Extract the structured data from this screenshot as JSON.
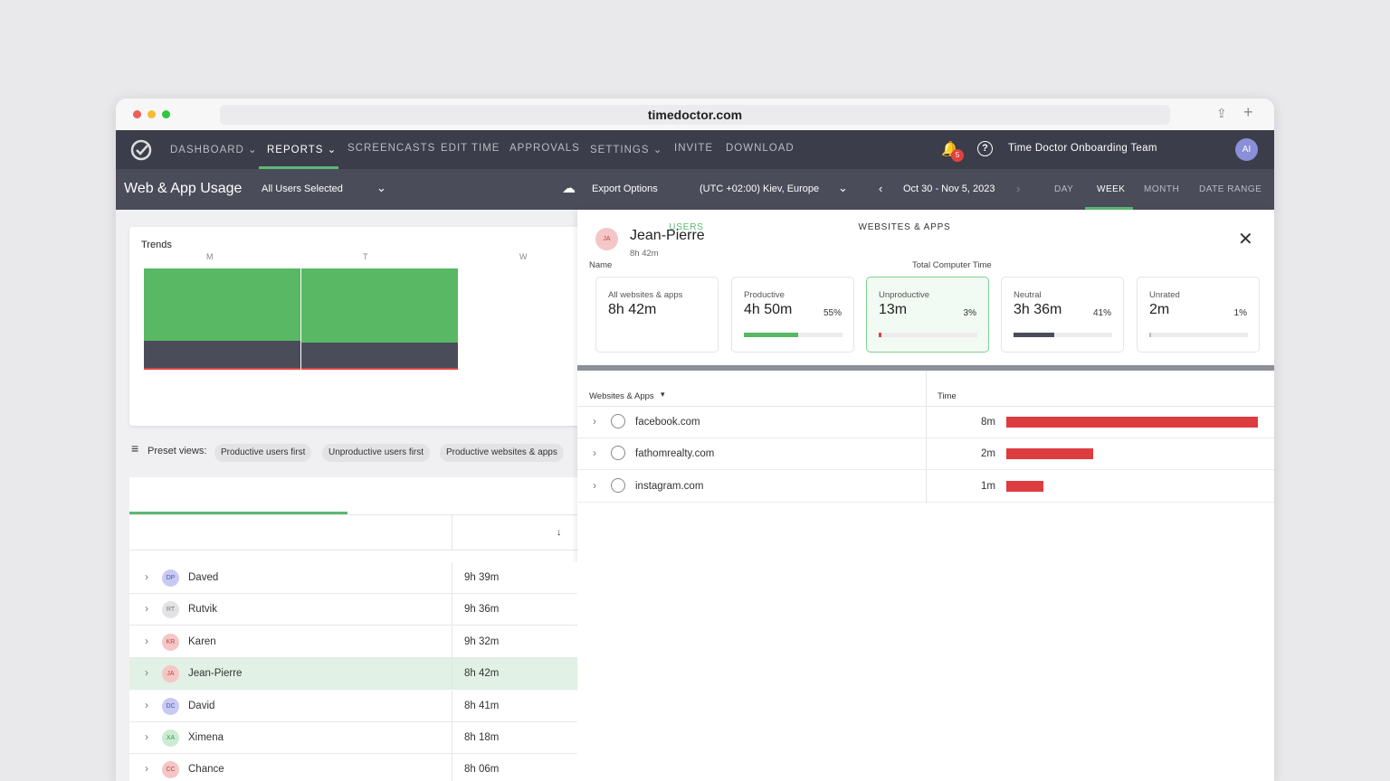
{
  "browser": {
    "url": "timedoctor.com"
  },
  "nav": {
    "items": [
      "DASHBOARD",
      "REPORTS",
      "SCREENCASTS",
      "EDIT TIME",
      "APPROVALS",
      "SETTINGS",
      "INVITE",
      "DOWNLOAD"
    ],
    "notifications": "5",
    "team": "Time Doctor Onboarding Team",
    "avatar": "AI"
  },
  "subheader": {
    "title": "Web & App Usage",
    "users": "All Users Selected",
    "export": "Export Options",
    "timezone": "(UTC +02:00) Kiev, Europe",
    "range": "Oct 30 - Nov 5, 2023",
    "periods": [
      "DAY",
      "WEEK",
      "MONTH",
      "DATE RANGE"
    ]
  },
  "trends": {
    "title": "Trends",
    "days": [
      "M",
      "T",
      "W"
    ]
  },
  "preset": {
    "label": "Preset views:",
    "chips": [
      "Productive users first",
      "Unproductive users first",
      "Productive websites & apps"
    ]
  },
  "tabs": [
    "USERS",
    "WEBSITES & APPS"
  ],
  "users": {
    "headers": [
      "Name",
      "Total Computer Time"
    ],
    "rows": [
      {
        "initials": "DP",
        "name": "Daved",
        "time": "9h 39m"
      },
      {
        "initials": "RT",
        "name": "Rutvik",
        "time": "9h 36m"
      },
      {
        "initials": "KR",
        "name": "Karen",
        "time": "9h 32m"
      },
      {
        "initials": "JA",
        "name": "Jean-Pierre",
        "time": "8h 42m"
      },
      {
        "initials": "DC",
        "name": "David",
        "time": "8h 41m"
      },
      {
        "initials": "XA",
        "name": "Ximena",
        "time": "8h 18m"
      },
      {
        "initials": "CC",
        "name": "Chance",
        "time": "8h 06m"
      }
    ]
  },
  "detail": {
    "initials": "JA",
    "name": "Jean-Pierre",
    "total": "8h 42m",
    "cards": [
      {
        "label": "All websites & apps",
        "value": "8h 42m"
      },
      {
        "label": "Productive",
        "value": "4h 50m",
        "pct": "55%"
      },
      {
        "label": "Unproductive",
        "value": "13m",
        "pct": "3%"
      },
      {
        "label": "Neutral",
        "value": "3h 36m",
        "pct": "41%"
      },
      {
        "label": "Unrated",
        "value": "2m",
        "pct": "1%"
      }
    ],
    "headers": [
      "Websites & Apps",
      "Time"
    ],
    "rows": [
      {
        "site": "facebook.com",
        "time": "8m"
      },
      {
        "site": "fathomrealty.com",
        "time": "2m"
      },
      {
        "site": "instagram.com",
        "time": "1m"
      }
    ]
  }
}
